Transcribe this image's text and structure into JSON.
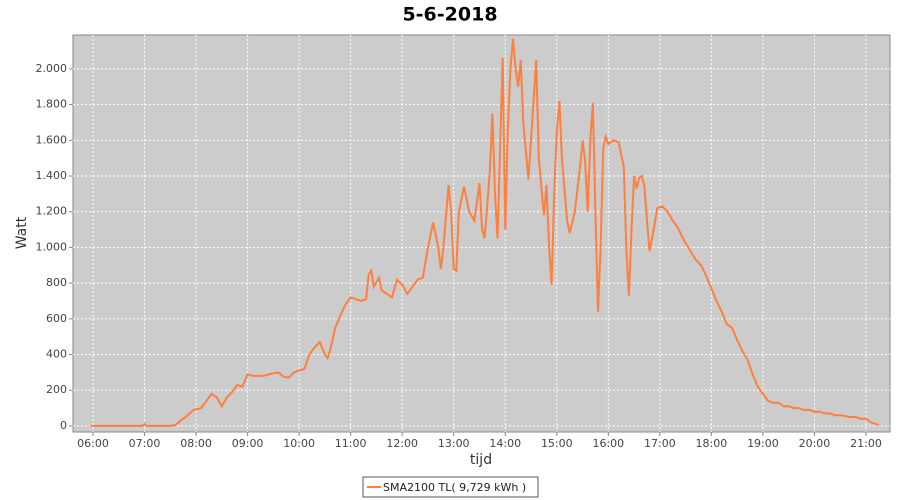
{
  "chart_data": {
    "type": "line",
    "title": "5-6-2018",
    "x_label": "tijd",
    "y_label": "Watt",
    "x": [
      5.95,
      6.5,
      6.95,
      7.0,
      7.05,
      7.5,
      7.6,
      7.7,
      7.8,
      7.95,
      8.1,
      8.2,
      8.3,
      8.4,
      8.5,
      8.6,
      8.7,
      8.8,
      8.9,
      9.0,
      9.1,
      9.3,
      9.5,
      9.6,
      9.7,
      9.8,
      9.9,
      10.0,
      10.1,
      10.2,
      10.3,
      10.4,
      10.5,
      10.55,
      10.6,
      10.7,
      10.8,
      10.9,
      11.0,
      11.1,
      11.2,
      11.3,
      11.35,
      11.4,
      11.45,
      11.55,
      11.6,
      11.7,
      11.8,
      11.9,
      12.0,
      12.1,
      12.2,
      12.3,
      12.4,
      12.5,
      12.6,
      12.7,
      12.75,
      12.8,
      12.9,
      12.95,
      13.0,
      13.05,
      13.1,
      13.2,
      13.3,
      13.4,
      13.5,
      13.55,
      13.6,
      13.7,
      13.75,
      13.8,
      13.85,
      13.95,
      14.0,
      14.05,
      14.1,
      14.15,
      14.2,
      14.25,
      14.3,
      14.35,
      14.45,
      14.5,
      14.6,
      14.65,
      14.75,
      14.8,
      14.85,
      14.9,
      14.95,
      15.0,
      15.05,
      15.1,
      15.2,
      15.25,
      15.35,
      15.45,
      15.5,
      15.55,
      15.6,
      15.65,
      15.7,
      15.75,
      15.8,
      15.85,
      15.9,
      15.95,
      16.0,
      16.1,
      16.2,
      16.3,
      16.35,
      16.4,
      16.45,
      16.5,
      16.55,
      16.6,
      16.65,
      16.7,
      16.75,
      16.8,
      16.85,
      16.95,
      17.05,
      17.15,
      17.25,
      17.35,
      17.45,
      17.55,
      17.7,
      17.8,
      17.9,
      18.0,
      18.1,
      18.2,
      18.3,
      18.4,
      18.5,
      18.6,
      18.7,
      18.8,
      18.9,
      19.0,
      19.1,
      19.2,
      19.3,
      19.4,
      19.5,
      19.6,
      19.7,
      19.8,
      19.9,
      20.0,
      20.1,
      20.2,
      20.3,
      20.4,
      20.5,
      20.6,
      20.7,
      20.8,
      20.9,
      21.0,
      21.1,
      21.2,
      21.25
    ],
    "series": [
      {
        "name": "SMA2100 TL( 9,729 kWh )",
        "color": "#ff7f3f",
        "values": [
          0,
          0,
          0,
          10,
          0,
          0,
          5,
          30,
          50,
          90,
          100,
          140,
          180,
          160,
          110,
          160,
          190,
          230,
          220,
          290,
          280,
          280,
          295,
          300,
          275,
          270,
          300,
          310,
          320,
          400,
          440,
          470,
          400,
          380,
          420,
          550,
          620,
          680,
          720,
          710,
          700,
          710,
          850,
          870,
          780,
          830,
          760,
          740,
          720,
          820,
          790,
          740,
          780,
          820,
          830,
          1000,
          1140,
          1000,
          880,
          1000,
          1350,
          1200,
          880,
          870,
          1200,
          1340,
          1200,
          1150,
          1360,
          1100,
          1050,
          1420,
          1750,
          1300,
          1050,
          2060,
          1100,
          1650,
          2000,
          2170,
          2000,
          1900,
          2050,
          1700,
          1380,
          1600,
          2050,
          1500,
          1180,
          1350,
          1000,
          790,
          1300,
          1650,
          1820,
          1500,
          1150,
          1080,
          1200,
          1450,
          1600,
          1480,
          1200,
          1600,
          1810,
          1200,
          640,
          1000,
          1550,
          1620,
          1580,
          1600,
          1590,
          1450,
          980,
          730,
          1100,
          1400,
          1330,
          1390,
          1400,
          1340,
          1150,
          980,
          1050,
          1220,
          1230,
          1200,
          1150,
          1110,
          1050,
          1000,
          930,
          900,
          840,
          770,
          700,
          640,
          570,
          550,
          480,
          420,
          370,
          290,
          220,
          180,
          140,
          130,
          130,
          110,
          110,
          100,
          100,
          90,
          90,
          80,
          80,
          70,
          70,
          60,
          60,
          55,
          50,
          50,
          40,
          40,
          20,
          10,
          5
        ]
      }
    ],
    "xlim": [
      5.612,
      21.466
    ],
    "xticks": [
      {
        "value": 6,
        "label": "06:00"
      },
      {
        "value": 7,
        "label": "07:00"
      },
      {
        "value": 8,
        "label": "08:00"
      },
      {
        "value": 9,
        "label": "09:00"
      },
      {
        "value": 10,
        "label": "10:00"
      },
      {
        "value": 11,
        "label": "11:00"
      },
      {
        "value": 12,
        "label": "12:00"
      },
      {
        "value": 13,
        "label": "13:00"
      },
      {
        "value": 14,
        "label": "14:00"
      },
      {
        "value": 15,
        "label": "15:00"
      },
      {
        "value": 16,
        "label": "16:00"
      },
      {
        "value": 17,
        "label": "17:00"
      },
      {
        "value": 18,
        "label": "18:00"
      },
      {
        "value": 19,
        "label": "19:00"
      },
      {
        "value": 20,
        "label": "20:00"
      },
      {
        "value": 21,
        "label": "21:00"
      }
    ],
    "ylim": [
      -34,
      2190
    ],
    "yticks": [
      0,
      200,
      400,
      600,
      800,
      {
        "value": 1000,
        "label": "1.000"
      },
      {
        "value": 1200,
        "label": "1.200"
      },
      {
        "value": 1400,
        "label": "1.400"
      },
      {
        "value": 1600,
        "label": "1.600"
      },
      {
        "value": 1800,
        "label": "1.800"
      },
      {
        "value": 2000,
        "label": "2.000"
      }
    ],
    "grid": true
  }
}
